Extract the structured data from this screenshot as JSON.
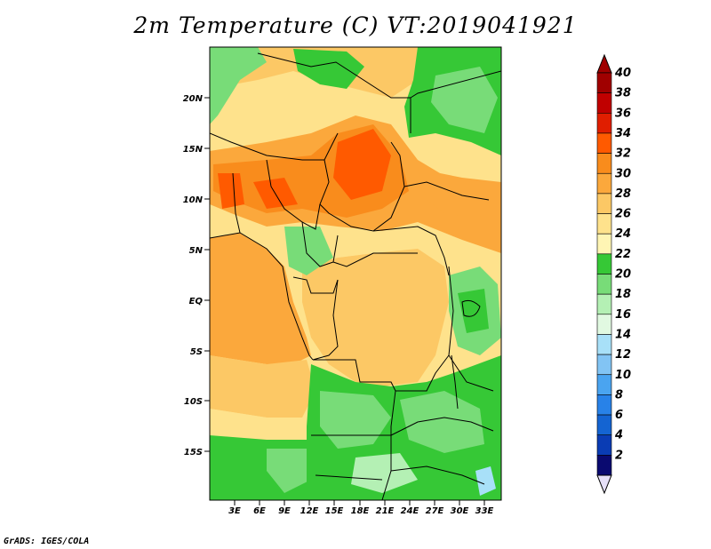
{
  "title": "2m Temperature (C) VT:2019041921",
  "footer": "GrADS: IGES/COLA",
  "map": {
    "lat_labels": [
      "20N",
      "15N",
      "10N",
      "5N",
      "EQ",
      "5S",
      "10S",
      "15S"
    ],
    "lon_labels": [
      "3E",
      "6E",
      "9E",
      "12E",
      "15E",
      "18E",
      "21E",
      "24E",
      "27E",
      "30E",
      "33E"
    ]
  },
  "colorbar": {
    "labels": [
      "40",
      "38",
      "36",
      "34",
      "32",
      "30",
      "28",
      "26",
      "24",
      "22",
      "20",
      "18",
      "16",
      "14",
      "12",
      "10",
      "8",
      "6",
      "4",
      "2"
    ],
    "colors": [
      "#a00000",
      "#c00000",
      "#e01e00",
      "#ff5a00",
      "#f98c1c",
      "#fba83c",
      "#fcc865",
      "#fee28c",
      "#fff5b4",
      "#36c836",
      "#78dc78",
      "#b4f0b4",
      "#e1f9e1",
      "#a8e0f8",
      "#82c4f4",
      "#4aa4f0",
      "#2882e8",
      "#1464d2",
      "#0a3cb4",
      "#0a0a70"
    ],
    "over_color": "#a00000",
    "under_color": "#e6e0f8"
  }
}
